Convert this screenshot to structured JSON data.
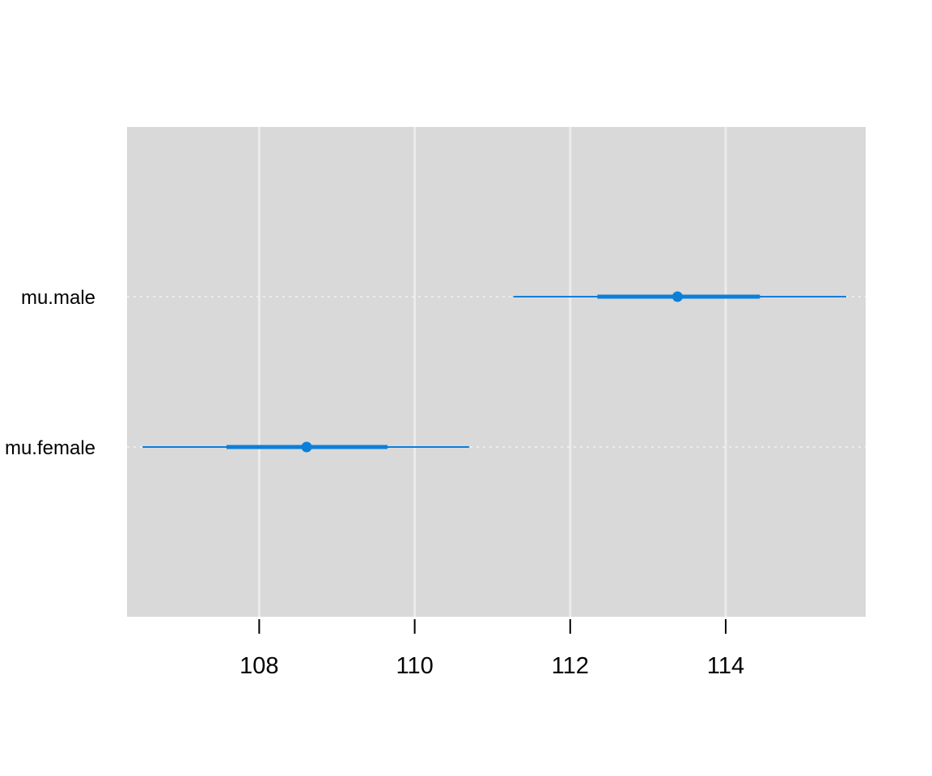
{
  "chart_data": {
    "type": "scatter",
    "subtype": "interval-plot",
    "title": "",
    "xlabel": "",
    "ylabel": "",
    "xlim": [
      106.3,
      115.8
    ],
    "x_ticks": [
      108,
      110,
      112,
      114
    ],
    "x_tick_labels": [
      "108",
      "110",
      "112",
      "114"
    ],
    "grid": true,
    "categories": [
      "mu.male",
      "mu.female"
    ],
    "series": [
      {
        "category": "mu.male",
        "point": 113.38,
        "inner_low": 112.35,
        "inner_high": 114.44,
        "outer_low": 111.27,
        "outer_high": 115.55
      },
      {
        "category": "mu.female",
        "point": 108.61,
        "inner_low": 107.58,
        "inner_high": 109.65,
        "outer_low": 106.5,
        "outer_high": 110.7
      }
    ],
    "colors": {
      "panel": "#d9d9d9",
      "grid": "#ebebeb",
      "interval": "#0a7fd9"
    }
  }
}
